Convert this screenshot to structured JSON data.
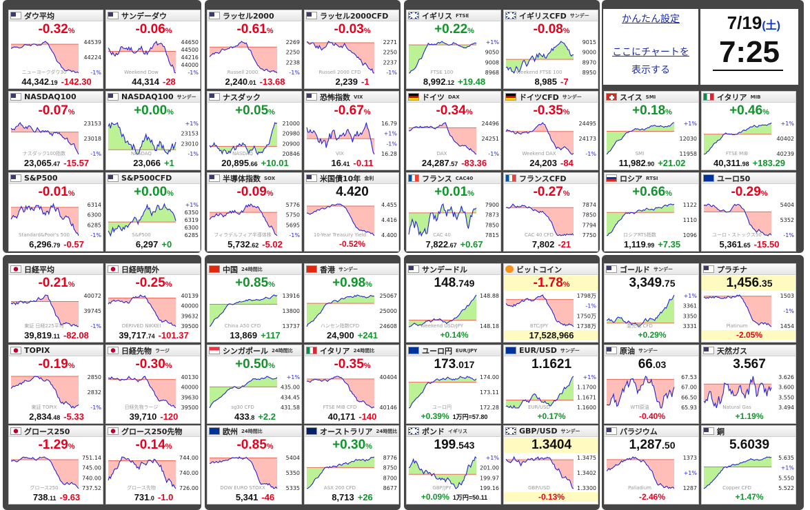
{
  "clock": {
    "date": "7/19",
    "weekday": "(土)",
    "time": "7:25"
  },
  "settings": {
    "simple_settings": "かんたん設定",
    "add_chart_line1": "ここにチャートを",
    "add_chart_line2": "表示する"
  },
  "cards": [
    {
      "name": "ダウ平均",
      "sub": "",
      "flag": "us",
      "top_type": "pct",
      "top_main": "-0.32",
      "top_suffix": "%",
      "dir": "red",
      "bottom_main": "44,342",
      "bottom_small": ".19",
      "bottom_change": "-142.30",
      "wm": "ニューヨークダウ30",
      "labels": [
        "44539",
        "44224",
        "-1%"
      ],
      "trend": "down"
    },
    {
      "name": "サンデーダウ",
      "sub": "",
      "flag": "us",
      "top_type": "pct",
      "top_main": "-0.06",
      "top_suffix": "%",
      "dir": "red",
      "bottom_main": "44,314",
      "bottom_small": "",
      "bottom_change": "-28",
      "wm": "Weekend Dow",
      "labels": [
        "44650",
        "44500",
        "44216",
        "44000",
        "-1%"
      ],
      "trend": "flatdown"
    },
    {
      "name": "ラッセル2000",
      "sub": "",
      "flag": "us",
      "top_type": "pct",
      "top_main": "-0.61",
      "top_suffix": "%",
      "dir": "red",
      "bottom_main": "2,240",
      "bottom_small": ".01",
      "bottom_change": "-13.68",
      "wm": "Russell 2000",
      "labels": [
        "2269",
        "2250",
        "2238",
        "-1%"
      ],
      "trend": "down"
    },
    {
      "name": "ラッセル2000CFD",
      "sub": "",
      "flag": "us",
      "top_type": "pct",
      "top_main": "-0.03",
      "top_suffix": "%",
      "dir": "red",
      "bottom_main": "2,239",
      "bottom_small": "",
      "bottom_change": "-1",
      "wm": "Russell 2000 CFD",
      "labels": [
        "2271",
        "2250",
        "2237",
        "-1%"
      ],
      "trend": "flatdown"
    },
    {
      "name": "イギリス",
      "sub": "FTSE",
      "flag": "uk",
      "top_type": "pct",
      "top_main": "+0.22",
      "top_suffix": "%",
      "dir": "green",
      "bottom_main": "8,992",
      "bottom_small": ".12",
      "bottom_change": "+19.48",
      "wm": "FTSE 100",
      "labels": [
        "+1%",
        "9050",
        "9008",
        "8968"
      ],
      "trend": "up"
    },
    {
      "name": "イギリスCFD",
      "sub": "サンデー",
      "flag": "uk",
      "top_type": "pct",
      "top_main": "-0.08",
      "top_suffix": "%",
      "dir": "red",
      "bottom_main": "8,985",
      "bottom_small": "",
      "bottom_change": "-7",
      "wm": "Weekend FTSE 100",
      "labels": [
        "9015",
        "9000",
        "8970",
        "8950"
      ],
      "trend": "flatdown"
    },
    {
      "name": "NASDAQ100",
      "sub": "",
      "flag": "us",
      "top_type": "pct",
      "top_main": "-0.07",
      "top_suffix": "%",
      "dir": "red",
      "bottom_main": "23,065",
      "bottom_small": ".47",
      "bottom_change": "-15.57",
      "wm": "ナスダック100指数",
      "labels": [
        "23153",
        "23018",
        "-1%"
      ],
      "trend": "flatdown"
    },
    {
      "name": "NASDAQ100",
      "sub": "サンデー",
      "flag": "us",
      "top_type": "pct",
      "top_main": "+0.00",
      "top_suffix": "%",
      "dir": "green",
      "bottom_main": "23,066",
      "bottom_small": "",
      "bottom_change": "+1",
      "wm": "NASDAQ",
      "labels": [
        "+1%",
        "23153",
        "23010",
        "-1%"
      ],
      "trend": "flat"
    },
    {
      "name": "ナスダック",
      "sub": "",
      "flag": "us",
      "top_type": "pct",
      "top_main": "+0.05",
      "top_suffix": "%",
      "dir": "green",
      "bottom_main": "20,895",
      "bottom_small": ".66",
      "bottom_change": "+10.01",
      "wm": "NASDAQ",
      "labels": [
        "21000",
        "20980",
        "20900",
        "20846"
      ],
      "trend": "flatup"
    },
    {
      "name": "恐怖指数",
      "sub": "VIX",
      "flag": "us",
      "top_type": "pct",
      "top_main": "-0.67",
      "top_suffix": "%",
      "dir": "red",
      "bottom_main": "16",
      "bottom_small": ".41",
      "bottom_change": "-0.11",
      "wm": "VIX",
      "labels": [
        "16.79",
        "+1%",
        "-1%",
        "16.28"
      ],
      "trend": "vol"
    },
    {
      "name": "ドイツ",
      "sub": "DAX",
      "flag": "de",
      "top_type": "pct",
      "top_main": "-0.34",
      "top_suffix": "%",
      "dir": "red",
      "bottom_main": "24,287",
      "bottom_small": ".57",
      "bottom_change": "-83.36",
      "wm": "DAX",
      "labels": [
        "24496",
        "24251",
        "-1%"
      ],
      "trend": "down"
    },
    {
      "name": "ドイツCFD",
      "sub": "サンデー",
      "flag": "de",
      "top_type": "pct",
      "top_main": "-0.35",
      "top_suffix": "%",
      "dir": "red",
      "bottom_main": "24,203",
      "bottom_small": "",
      "bottom_change": "-84",
      "wm": "Weekend DAX",
      "labels": [
        "24495",
        "24173",
        "-1%"
      ],
      "trend": "down"
    },
    {
      "name": "スイス",
      "sub": "SMI",
      "flag": "ch",
      "top_type": "pct",
      "top_main": "+0.18",
      "top_suffix": "%",
      "dir": "green",
      "bottom_main": "11,982",
      "bottom_small": ".90",
      "bottom_change": "+21.02",
      "wm": "SMI",
      "labels": [
        "+1%",
        "12030",
        "11958"
      ],
      "trend": "up"
    },
    {
      "name": "イタリア",
      "sub": "MIB",
      "flag": "it",
      "top_type": "pct",
      "top_main": "+0.46",
      "top_suffix": "%",
      "dir": "green",
      "bottom_main": "40,311",
      "bottom_small": ".98",
      "bottom_change": "+183.29",
      "wm": "FTSE MIB",
      "labels": [
        "+1%",
        "40402",
        "40239"
      ],
      "trend": "up"
    },
    {
      "name": "S&P500",
      "sub": "",
      "flag": "us",
      "top_type": "pct",
      "top_main": "-0.01",
      "top_suffix": "%",
      "dir": "red",
      "bottom_main": "6,296",
      "bottom_small": ".79",
      "bottom_change": "-0.57",
      "wm": "Standard&Poor's 500",
      "labels": [
        "6314",
        "6300",
        "6285",
        "-1%"
      ],
      "trend": "flatdown"
    },
    {
      "name": "S&P500CFD",
      "sub": "",
      "flag": "us",
      "top_type": "pct",
      "top_main": "+0.00",
      "top_suffix": "%",
      "dir": "green",
      "bottom_main": "6,297",
      "bottom_small": "",
      "bottom_change": "+0",
      "wm": "S&P500",
      "labels": [
        "+1%",
        "6350",
        "6319",
        "6300",
        "6285"
      ],
      "trend": "flat"
    },
    {
      "name": "半導体指数",
      "sub": "SOX",
      "flag": "us",
      "top_type": "pct",
      "top_main": "-0.09",
      "top_suffix": "%",
      "dir": "red",
      "bottom_main": "5,732",
      "bottom_small": ".62",
      "bottom_change": "-5.02",
      "wm": "フィラデルフィア半導体株",
      "labels": [
        "5776",
        "5750",
        "5695",
        "-1%"
      ],
      "trend": "flatdown"
    },
    {
      "name": "米国債10年",
      "sub": "金利",
      "flag": "us",
      "top_type": "val",
      "top_main": "4.420",
      "top_small": "",
      "top_suffix": "",
      "dir": "blk",
      "bottom_change_only": "-0.52%",
      "bdir": "red",
      "wm": "10-Year Treasury Yield",
      "labels": [
        "4.455",
        "4.416",
        "4.400"
      ],
      "trend": "down"
    },
    {
      "name": "フランス",
      "sub": "CAC40",
      "flag": "fr",
      "top_type": "pct",
      "top_main": "+0.01",
      "top_suffix": "%",
      "dir": "green",
      "bottom_main": "7,822",
      "bottom_small": ".67",
      "bottom_change": "+0.67",
      "wm": "CAC 40",
      "labels": [
        "7900",
        "7873",
        "7850",
        "7815"
      ],
      "trend": "flat"
    },
    {
      "name": "フランスCFD",
      "sub": "",
      "flag": "fr",
      "top_type": "pct",
      "top_main": "-0.27",
      "top_suffix": "%",
      "dir": "red",
      "bottom_main": "7,802",
      "bottom_small": "",
      "bottom_change": "-21",
      "wm": "CAC 40 CFD",
      "labels": [
        "7874",
        "7850",
        "7794",
        "7750"
      ],
      "trend": "down"
    },
    {
      "name": "ロシア",
      "sub": "RTSI",
      "flag": "ru",
      "top_type": "pct",
      "top_main": "+0.66",
      "top_suffix": "%",
      "dir": "green",
      "bottom_main": "1,119",
      "bottom_small": ".99",
      "bottom_change": "+7.35",
      "wm": "ロシアRTS指数",
      "labels": [
        "1122",
        "1110",
        "1096"
      ],
      "trend": "up"
    },
    {
      "name": "ユーロ50",
      "sub": "",
      "flag": "eu",
      "top_type": "pct",
      "top_main": "-0.29",
      "top_suffix": "%",
      "dir": "red",
      "bottom_main": "5,361",
      "bottom_small": ".65",
      "bottom_change": "-15.50",
      "wm": "ユーロ・ストックス50",
      "labels": [
        "5404",
        "5352",
        "-1%"
      ],
      "trend": "down"
    },
    {
      "name": "日経平均",
      "sub": "",
      "flag": "jp",
      "top_type": "pct",
      "top_main": "-0.21",
      "top_suffix": "%",
      "dir": "red",
      "bottom_main": "39,819",
      "bottom_small": ".11",
      "bottom_change": "-82.08",
      "wm": "東証 日経225平均",
      "labels": [
        "40072",
        "39745",
        "-1%"
      ],
      "trend": "down"
    },
    {
      "name": "日経時間外",
      "sub": "",
      "flag": "jp",
      "top_type": "pct",
      "top_main": "-0.25",
      "top_suffix": "%",
      "dir": "red",
      "bottom_main": "39,717",
      "bottom_small": ".74",
      "bottom_change": "-101.37",
      "wm": "DERIVED NIKKEI",
      "labels": [
        "40139",
        "40000",
        "39632",
        "39500"
      ],
      "trend": "down"
    },
    {
      "name": "中国",
      "sub": "24時間比",
      "flag": "cn",
      "top_type": "pct",
      "top_main": "+0.85",
      "top_suffix": "%",
      "dir": "green",
      "bottom_main": "13,869",
      "bottom_small": "",
      "bottom_change": "+117",
      "wm": "China A50 CFD",
      "labels": [
        "13916",
        "13800",
        "13737"
      ],
      "trend": "up"
    },
    {
      "name": "香港",
      "sub": "サンデー",
      "flag": "hk",
      "top_type": "pct",
      "top_main": "+0.98",
      "top_suffix": "%",
      "dir": "green",
      "bottom_main": "24,900",
      "bottom_small": "",
      "bottom_change": "+241",
      "wm": "ハンセン指数CFD",
      "labels": [
        "25067",
        "25000",
        "24608"
      ],
      "trend": "up"
    },
    {
      "name": "サンデードル",
      "sub": "",
      "flag": "us",
      "top_type": "val",
      "top_main": "148",
      "top_small": ".749",
      "top_suffix": "",
      "dir": "blk",
      "bottom_change_only": "+0.14%",
      "bdir": "green",
      "wm": "Weekend USD/JPY",
      "labels": [
        "148.88",
        "148.18"
      ],
      "trend": "flatup"
    },
    {
      "name": "ビットコイン",
      "sub": "",
      "flag": "btc",
      "top_type": "pct",
      "top_main": "-1.78",
      "top_suffix": "%",
      "dir": "red",
      "hl": true,
      "bottom_main": "17,528,966",
      "bottom_small": "",
      "bottom_change": "",
      "wm": "BTC/JPY",
      "labels": [
        "1798万",
        "-1%",
        "1750万",
        "1738万"
      ],
      "trend": "down"
    },
    {
      "name": "ゴールド",
      "sub": "サンデー",
      "flag": "us",
      "top_type": "val",
      "top_main": "3,349",
      "top_small": ".75",
      "top_suffix": "",
      "dir": "blk",
      "bottom_change_only": "+0.29%",
      "bdir": "green",
      "wm": "金先物 CFD",
      "labels": [
        "+1%",
        "3361",
        "3350",
        "3331"
      ],
      "trend": "flatup"
    },
    {
      "name": "プラチナ",
      "sub": "",
      "flag": "us",
      "top_type": "val",
      "top_main": "1,456",
      "top_small": ".35",
      "top_suffix": "",
      "dir": "blk",
      "hl": true,
      "bottom_change_only": "-2.05%",
      "bdir": "red",
      "wm": "Platinum",
      "labels": [
        "1503",
        "-1%",
        "1454"
      ],
      "trend": "down"
    },
    {
      "name": "TOPIX",
      "sub": "",
      "flag": "jp",
      "top_type": "pct",
      "top_main": "-0.19",
      "top_suffix": "%",
      "dir": "red",
      "bottom_main": "2,834",
      "bottom_small": ".48",
      "bottom_change": "-5.33",
      "wm": "東証 TOPIX",
      "labels": [
        "2850",
        "2832",
        "-1%"
      ],
      "trend": "down"
    },
    {
      "name": "日経先物",
      "sub": "ラージ",
      "flag": "jp",
      "top_type": "pct",
      "top_main": "-0.30",
      "top_suffix": "%",
      "dir": "red",
      "bottom_main": "39,710",
      "bottom_small": "",
      "bottom_change": "-120",
      "wm": "日経先物ラージ",
      "labels": [
        "40130",
        "40000",
        "39630",
        "39500"
      ],
      "trend": "down"
    },
    {
      "name": "シンガポール",
      "sub": "24時間比",
      "flag": "sg",
      "top_type": "pct",
      "top_main": "+0.50",
      "top_suffix": "%",
      "dir": "green",
      "bottom_main": "433",
      "bottom_small": ".8",
      "bottom_change": "+2.2",
      "wm": "sg30 CFD",
      "labels": [
        "+1%",
        "435.00",
        "434.45",
        "431.58"
      ],
      "trend": "up"
    },
    {
      "name": "イタリア",
      "sub": "24時間比",
      "flag": "it",
      "top_type": "pct",
      "top_main": "-0.35",
      "top_suffix": "%",
      "dir": "red",
      "bottom_main": "40,171",
      "bottom_small": "",
      "bottom_change": "-140",
      "wm": "FTSE MIB CFD",
      "labels": [
        "40404",
        "40146"
      ],
      "trend": "down"
    },
    {
      "name": "ユーロ円",
      "sub": "EUR/JPY",
      "flag": "eu",
      "top_type": "val",
      "top_main": "173",
      "top_small": ".017",
      "top_suffix": "",
      "dir": "blk",
      "bottom_change_only": "+0.39%",
      "bextra": "1万円=57.80",
      "bdir": "green",
      "wm": "ユーロ円",
      "labels": [
        "174.00",
        "173.11",
        "172.28"
      ],
      "trend": "up"
    },
    {
      "name": "EUR/USD",
      "sub": "サンデー",
      "flag": "eu",
      "top_type": "val",
      "top_main": "1.1621",
      "top_small": "",
      "top_suffix": "",
      "dir": "blk",
      "bottom_change_only": "+0.17%",
      "bdir": "green",
      "wm": "EUR/USD",
      "labels": [
        "+1%",
        "1.1700",
        "1.1671",
        "1.1600"
      ],
      "trend": "flatup"
    },
    {
      "name": "原油",
      "sub": "サンデー",
      "flag": "us",
      "top_type": "val",
      "top_main": "66",
      "top_small": ".03",
      "top_suffix": "",
      "dir": "blk",
      "bottom_change_only": "-0.40%",
      "bdir": "red",
      "wm": "WTI原油",
      "labels": [
        "67.53",
        "67.00",
        "66.50",
        "65.93"
      ],
      "trend": "vol"
    },
    {
      "name": "天然ガス",
      "sub": "",
      "flag": "us",
      "top_type": "val",
      "top_main": "3.567",
      "top_small": "",
      "top_suffix": "",
      "dir": "blk",
      "bottom_change_only": "+1.19%",
      "bdir": "green",
      "wm": "Natural Gas",
      "labels": [
        "3.626",
        "3.600",
        "3.550",
        "3.494"
      ],
      "trend": "vol"
    },
    {
      "name": "グロース250",
      "sub": "",
      "flag": "jp",
      "top_type": "pct",
      "top_main": "-1.29",
      "top_suffix": "%",
      "dir": "red",
      "bottom_main": "738",
      "bottom_small": ".11",
      "bottom_change": "-9.63",
      "wm": "グロース250",
      "labels": [
        "751.14",
        "745.00",
        "740.00",
        "737.52"
      ],
      "trend": "down"
    },
    {
      "name": "グロース250先物",
      "sub": "",
      "flag": "jp",
      "top_type": "pct",
      "top_main": "-0.14",
      "top_suffix": "%",
      "dir": "red",
      "bottom_main": "731",
      "bottom_small": ".0",
      "bottom_change": "-1.0",
      "wm": "グロース先物",
      "labels": [
        "744.00",
        "740.00",
        "726.00"
      ],
      "trend": "flatdown"
    },
    {
      "name": "欧州",
      "sub": "24時間比",
      "flag": "eu",
      "top_type": "pct",
      "top_main": "-0.85",
      "top_suffix": "%",
      "dir": "red",
      "bottom_main": "5,341",
      "bottom_small": "",
      "bottom_change": "-46",
      "wm": "DOW EURO STOXX",
      "labels": [
        "5404",
        "5350",
        "5335"
      ],
      "trend": "down"
    },
    {
      "name": "オーストラリア",
      "sub": "24時間比",
      "flag": "au",
      "top_type": "pct",
      "top_main": "+0.30",
      "top_suffix": "%",
      "dir": "green",
      "bottom_main": "8,713",
      "bottom_small": "",
      "bottom_change": "+26",
      "wm": "ASX 200 CFD",
      "labels": [
        "8776",
        "8750",
        "8700",
        "8677"
      ],
      "trend": "up"
    },
    {
      "name": "ポンド",
      "sub": "イギリス",
      "flag": "uk",
      "top_type": "val",
      "top_main": "199",
      "top_small": ".543",
      "top_suffix": "",
      "dir": "blk",
      "bottom_change_only": "+0.09%",
      "bextra": "1万円=50.11",
      "bdir": "green",
      "wm": "GBP/JPY",
      "labels": [
        "+1%",
        "201.00",
        "199.97",
        "199.16"
      ],
      "trend": "flatup"
    },
    {
      "name": "GBP/USD",
      "sub": "サンデー",
      "flag": "uk",
      "top_type": "val",
      "top_main": "1.3404",
      "top_small": "",
      "top_suffix": "",
      "dir": "blk",
      "hl": true,
      "bottom_change_only": "-0.13%",
      "bdir": "red",
      "wm": "GBP/USD",
      "labels": [
        "1.3475",
        "1.3402",
        "1.3300"
      ],
      "trend": "flatdown"
    },
    {
      "name": "パラジウム",
      "sub": "",
      "flag": "us",
      "top_type": "val",
      "top_main": "1,287",
      "top_small": ".50",
      "top_suffix": "",
      "dir": "blk",
      "bottom_change_only": "-2.46%",
      "bdir": "red",
      "wm": "Palladium",
      "labels": [
        "1373",
        "+1%",
        "1287"
      ],
      "trend": "down"
    },
    {
      "name": "銅",
      "sub": "",
      "flag": "us",
      "top_type": "val",
      "top_main": "5.6039",
      "top_small": "",
      "top_suffix": "",
      "dir": "blk",
      "bottom_change_only": "+1.47%",
      "bdir": "green",
      "wm": "Copper CFD",
      "labels": [
        "5.635",
        "+1%",
        "5.550",
        "5.522"
      ],
      "trend": "up"
    }
  ],
  "colors": {
    "down": "#e8001c",
    "up": "#11952a",
    "line": "#2323d6",
    "fill_up": "#b6f08a",
    "fill_down": "#ffb7b0"
  }
}
